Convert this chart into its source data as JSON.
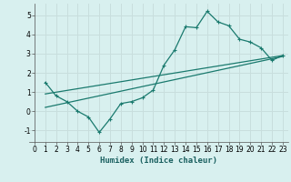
{
  "title": "",
  "xlabel": "Humidex (Indice chaleur)",
  "ylabel": "",
  "bg_color": "#d8f0ef",
  "grid_color": "#c8dedd",
  "line_color": "#1a7a6e",
  "xlim": [
    -0.5,
    23.5
  ],
  "ylim": [
    -1.6,
    5.6
  ],
  "xticks": [
    0,
    1,
    2,
    3,
    4,
    5,
    6,
    7,
    8,
    9,
    10,
    11,
    12,
    13,
    14,
    15,
    16,
    17,
    18,
    19,
    20,
    21,
    22,
    23
  ],
  "yticks": [
    -1,
    0,
    1,
    2,
    3,
    4,
    5
  ],
  "series1_x": [
    1,
    2,
    3,
    4,
    5,
    6,
    7,
    8,
    9,
    10,
    11,
    12,
    13,
    14,
    15,
    16,
    17,
    18,
    19,
    20,
    21,
    22,
    23
  ],
  "series1_y": [
    1.5,
    0.8,
    0.5,
    0.0,
    -0.3,
    -1.1,
    -0.4,
    0.4,
    0.5,
    0.7,
    1.1,
    2.4,
    3.2,
    4.4,
    4.35,
    5.2,
    4.65,
    4.45,
    3.75,
    3.6,
    3.3,
    2.65,
    2.9
  ],
  "series2_x": [
    1,
    23
  ],
  "series2_y": [
    0.9,
    2.9
  ],
  "series3_x": [
    1,
    23
  ],
  "series3_y": [
    0.2,
    2.85
  ],
  "xlabel_fontsize": 6.5,
  "tick_fontsize": 5.5
}
